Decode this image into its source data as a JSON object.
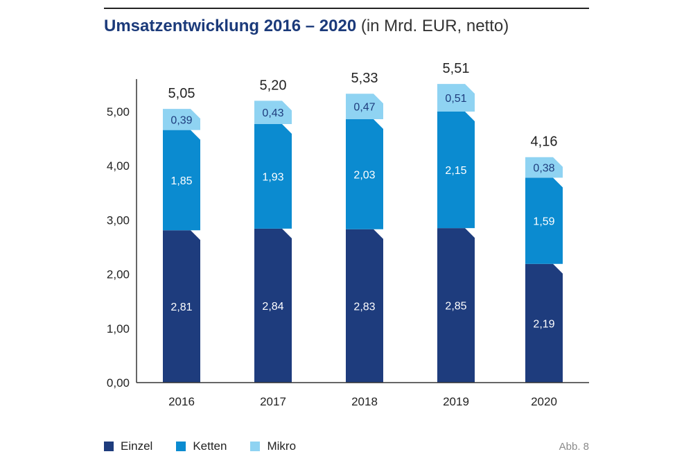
{
  "title": {
    "bold": "Umsatzentwicklung 2016 – 2020",
    "subtitle": "(in Mrd. EUR, netto)"
  },
  "figure_label": "Abb. 8",
  "colors": {
    "einzel": "#1e3c7d",
    "ketten": "#0b8bd0",
    "mikro": "#8fd3f2"
  },
  "chart_data": {
    "type": "bar",
    "stacked": true,
    "title": "Umsatzentwicklung 2016 – 2020 (in Mrd. EUR, netto)",
    "categories": [
      "2016",
      "2017",
      "2018",
      "2019",
      "2020"
    ],
    "series": [
      {
        "name": "Einzel",
        "values": [
          2.81,
          2.84,
          2.83,
          2.85,
          2.19
        ],
        "labels": [
          "2,81",
          "2,84",
          "2,83",
          "2,85",
          "2,19"
        ]
      },
      {
        "name": "Ketten",
        "values": [
          1.85,
          1.93,
          2.03,
          2.15,
          1.59
        ],
        "labels": [
          "1,85",
          "1,93",
          "2,03",
          "2,15",
          "1,59"
        ]
      },
      {
        "name": "Mikro",
        "values": [
          0.39,
          0.43,
          0.47,
          0.51,
          0.38
        ],
        "labels": [
          "0,39",
          "0,43",
          "0,47",
          "0,51",
          "0,38"
        ]
      }
    ],
    "totals": [
      5.05,
      5.2,
      5.33,
      5.51,
      4.16
    ],
    "total_labels": [
      "5,05",
      "5,20",
      "5,33",
      "5,51",
      "4,16"
    ],
    "yticks": [
      "0,00",
      "1,00",
      "2,00",
      "3,00",
      "4,00",
      "5,00"
    ],
    "ylim": [
      0,
      5.6
    ],
    "xlabel": "",
    "ylabel": "",
    "legend": [
      "Einzel",
      "Ketten",
      "Mikro"
    ]
  }
}
